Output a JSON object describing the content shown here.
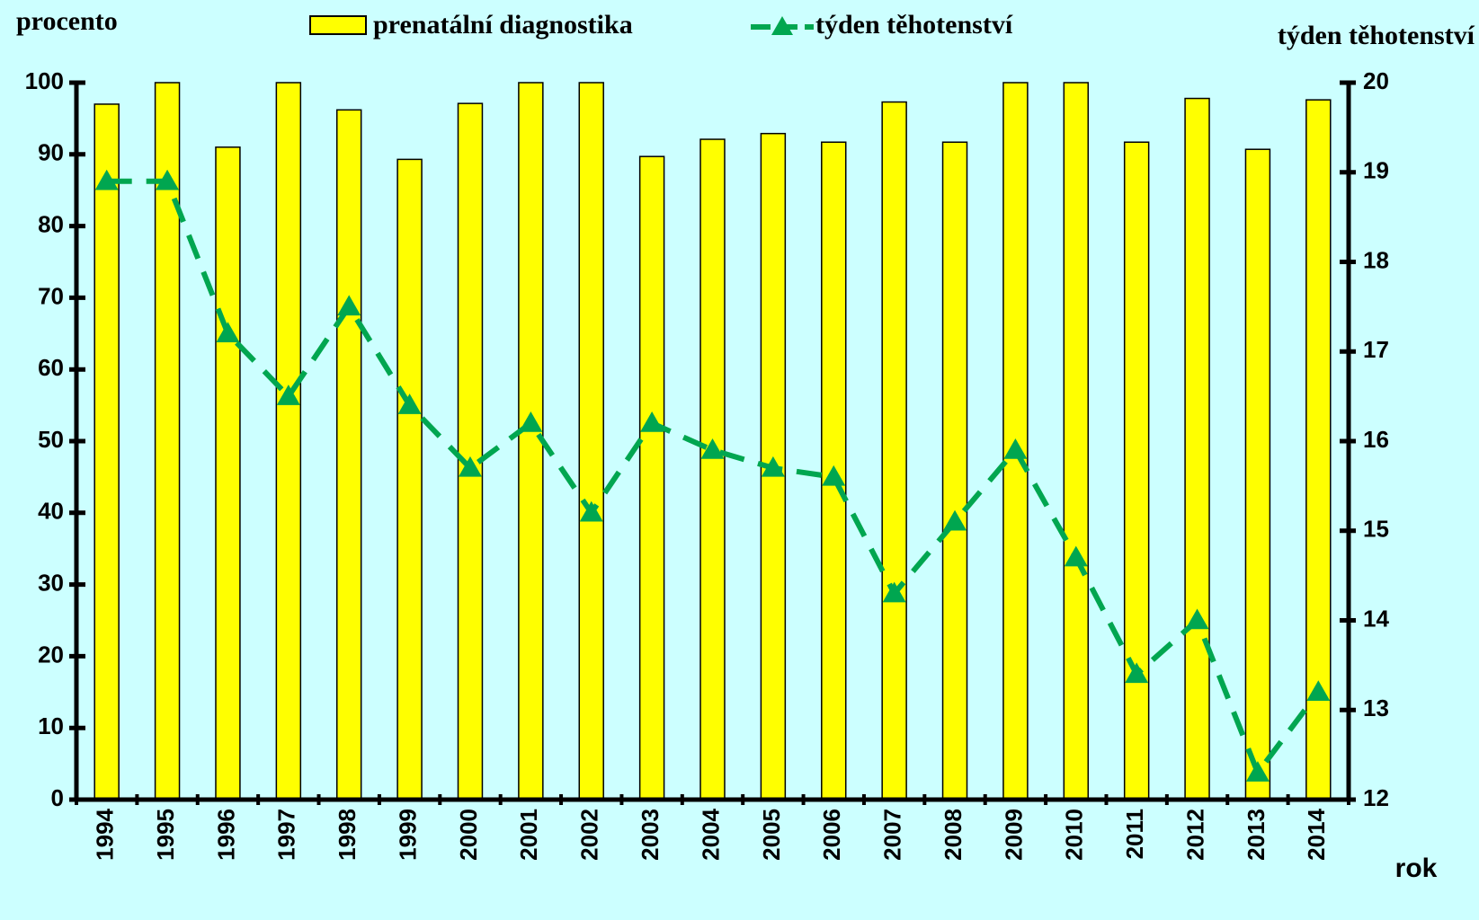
{
  "chart_data": {
    "type": "bar",
    "ylabel": "procento",
    "y2label": "týden těhotenství",
    "xlabel": "rok",
    "categories": [
      "1994",
      "1995",
      "1996",
      "1997",
      "1998",
      "1999",
      "2000",
      "2001",
      "2002",
      "2003",
      "2004",
      "2005",
      "2006",
      "2007",
      "2008",
      "2009",
      "2010",
      "2011",
      "2012",
      "2013",
      "2014"
    ],
    "series": [
      {
        "name": "prenatální diagnostika",
        "type": "bar",
        "color": "#ffff00",
        "values": [
          97,
          100,
          91,
          100,
          96.2,
          89.3,
          97.1,
          100,
          100,
          89.7,
          92.1,
          92.9,
          91.7,
          97.3,
          91.7,
          100,
          100,
          91.7,
          97.8,
          90.7,
          97.6
        ]
      },
      {
        "name": "týden těhotenství",
        "type": "line",
        "axis": "y2",
        "color": "#00a650",
        "values": [
          18.9,
          18.9,
          17.2,
          16.5,
          17.5,
          16.4,
          15.7,
          16.2,
          15.2,
          16.2,
          15.9,
          15.7,
          15.6,
          14.3,
          15.1,
          15.9,
          14.7,
          13.4,
          14.0,
          12.3,
          13.2
        ]
      }
    ],
    "ylim": [
      0,
      100
    ],
    "yticks": [
      0,
      10,
      20,
      30,
      40,
      50,
      60,
      70,
      80,
      90,
      100
    ],
    "y2lim": [
      12,
      20
    ],
    "y2ticks": [
      12,
      13,
      14,
      15,
      16,
      17,
      18,
      19,
      20
    ],
    "grid": false,
    "background": "#ccffff"
  }
}
